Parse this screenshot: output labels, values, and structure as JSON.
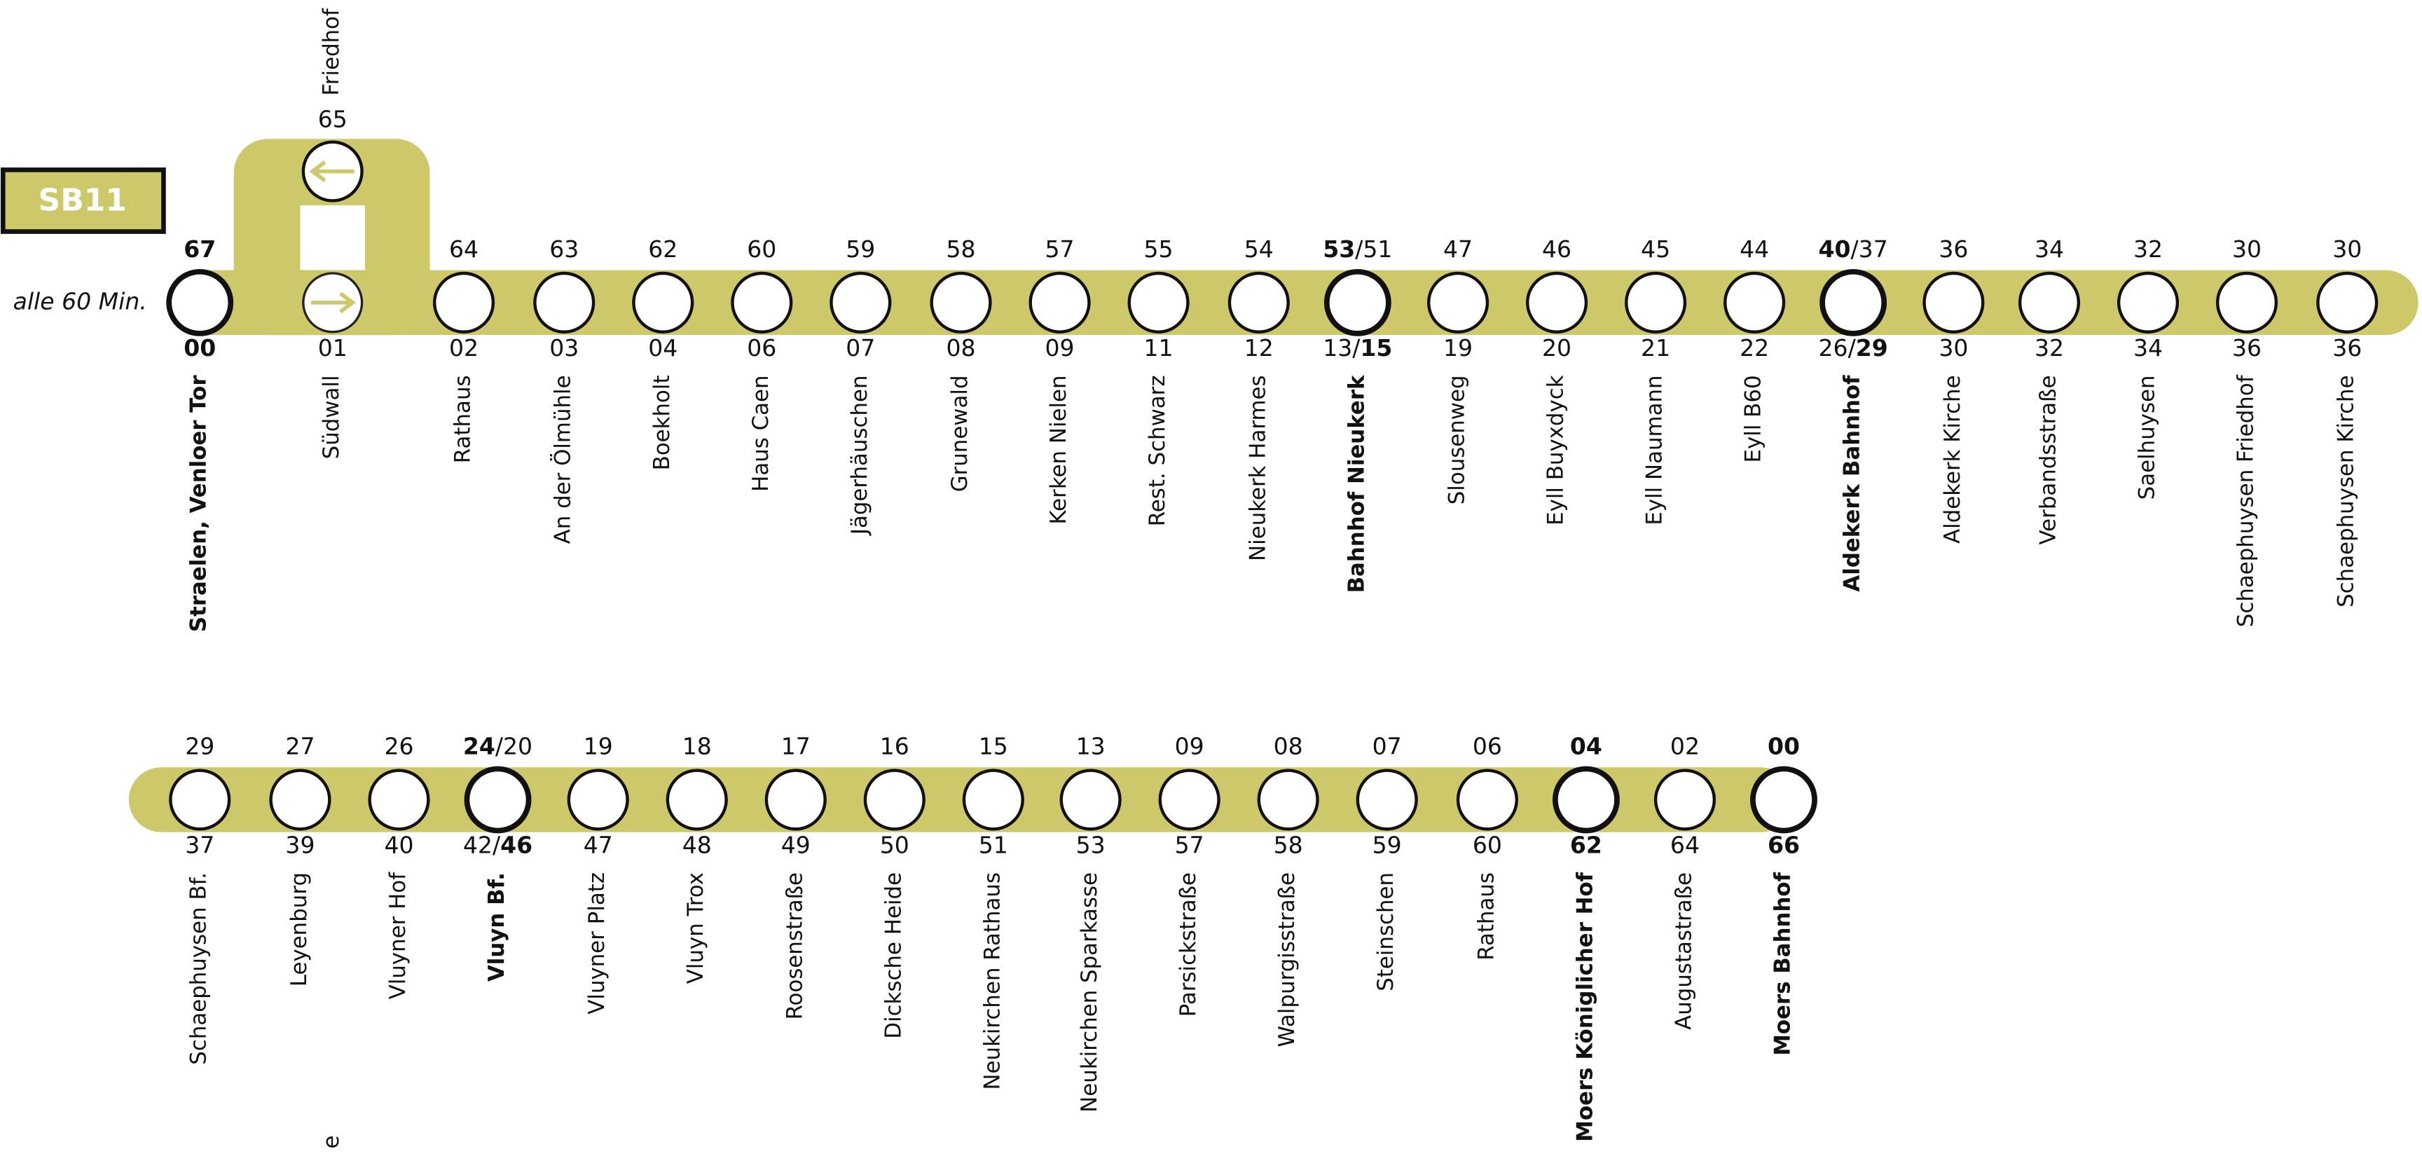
{
  "line": {
    "name": "SB11",
    "frequency": "alle 60 Min."
  },
  "branch": {
    "name": "Friedhof",
    "top": [
      "65"
    ]
  },
  "fragment": "e",
  "rows": [
    {
      "stops": [
        {
          "name": "Straelen, Venloer Tor",
          "major": true,
          "top": [
            {
              "text": "67",
              "bold": true
            }
          ],
          "bottom": [
            {
              "text": "00",
              "bold": true
            }
          ]
        },
        {
          "name": "Südwall",
          "branch": true,
          "bottom": [
            "01"
          ]
        },
        {
          "name": "Rathaus",
          "top": [
            "64"
          ],
          "bottom": [
            "02"
          ]
        },
        {
          "name": "An der Ölmühle",
          "top": [
            "63"
          ],
          "bottom": [
            "03"
          ]
        },
        {
          "name": "Boekholt",
          "top": [
            "62"
          ],
          "bottom": [
            "04"
          ]
        },
        {
          "name": "Haus Caen",
          "top": [
            "60"
          ],
          "bottom": [
            "06"
          ]
        },
        {
          "name": "Jägerhäuschen",
          "top": [
            "59"
          ],
          "bottom": [
            "07"
          ]
        },
        {
          "name": "Grunewald",
          "top": [
            "58"
          ],
          "bottom": [
            "08"
          ]
        },
        {
          "name": "Kerken Nielen",
          "top": [
            "57"
          ],
          "bottom": [
            "09"
          ]
        },
        {
          "name": "Rest. Schwarz",
          "top": [
            "55"
          ],
          "bottom": [
            "11"
          ]
        },
        {
          "name": "Nieukerk Harmes",
          "top": [
            "54"
          ],
          "bottom": [
            "12"
          ]
        },
        {
          "name": "Bahnhof Nieukerk",
          "major": true,
          "top": [
            {
              "text": "53",
              "bold": true
            },
            "/51"
          ],
          "bottom": [
            "13/",
            {
              "text": "15",
              "bold": true
            }
          ]
        },
        {
          "name": "Slousenweg",
          "top": [
            "47"
          ],
          "bottom": [
            "19"
          ]
        },
        {
          "name": "Eyll Buyxdyck",
          "top": [
            "46"
          ],
          "bottom": [
            "20"
          ]
        },
        {
          "name": "Eyll Naumann",
          "top": [
            "45"
          ],
          "bottom": [
            "21"
          ]
        },
        {
          "name": "Eyll B60",
          "top": [
            "44"
          ],
          "bottom": [
            "22"
          ]
        },
        {
          "name": "Aldekerk Bahnhof",
          "major": true,
          "top": [
            {
              "text": "40",
              "bold": true
            },
            "/37"
          ],
          "bottom": [
            "26/",
            {
              "text": "29",
              "bold": true
            }
          ]
        },
        {
          "name": "Aldekerk Kirche",
          "top": [
            "36"
          ],
          "bottom": [
            "30"
          ]
        },
        {
          "name": "Verbandsstraße",
          "top": [
            "34"
          ],
          "bottom": [
            "32"
          ]
        },
        {
          "name": "Saelhuysen",
          "top": [
            "32"
          ],
          "bottom": [
            "34"
          ]
        },
        {
          "name": "Schaephuysen Friedhof",
          "top": [
            "30"
          ],
          "bottom": [
            "36"
          ]
        },
        {
          "name": "Schaephuysen Kirche",
          "top": [
            "30"
          ],
          "bottom": [
            "36"
          ]
        }
      ]
    },
    {
      "stops": [
        {
          "name": "Schaephuysen Bf.",
          "top": [
            "29"
          ],
          "bottom": [
            "37"
          ]
        },
        {
          "name": "Leyenburg",
          "top": [
            "27"
          ],
          "bottom": [
            "39"
          ]
        },
        {
          "name": "Vluyner Hof",
          "top": [
            "26"
          ],
          "bottom": [
            "40"
          ]
        },
        {
          "name": "Vluyn Bf.",
          "major": true,
          "top": [
            {
              "text": "24",
              "bold": true
            },
            "/20"
          ],
          "bottom": [
            "42/",
            {
              "text": "46",
              "bold": true
            }
          ]
        },
        {
          "name": "Vluyner Platz",
          "top": [
            "19"
          ],
          "bottom": [
            "47"
          ]
        },
        {
          "name": "Vluyn Trox",
          "top": [
            "18"
          ],
          "bottom": [
            "48"
          ]
        },
        {
          "name": "Roosenstraße",
          "top": [
            "17"
          ],
          "bottom": [
            "49"
          ]
        },
        {
          "name": "Dicksche Heide",
          "top": [
            "16"
          ],
          "bottom": [
            "50"
          ]
        },
        {
          "name": "Neukirchen Rathaus",
          "top": [
            "15"
          ],
          "bottom": [
            "51"
          ]
        },
        {
          "name": "Neukirchen Sparkasse",
          "top": [
            "13"
          ],
          "bottom": [
            "53"
          ]
        },
        {
          "name": "Parsickstraße",
          "top": [
            "09"
          ],
          "bottom": [
            "57"
          ]
        },
        {
          "name": "Walpurgisstraße",
          "top": [
            "08"
          ],
          "bottom": [
            "58"
          ]
        },
        {
          "name": "Steinschen",
          "top": [
            "07"
          ],
          "bottom": [
            "59"
          ]
        },
        {
          "name": "Rathaus",
          "top": [
            "06"
          ],
          "bottom": [
            "60"
          ]
        },
        {
          "name": "Moers Königlicher Hof",
          "major": true,
          "top": [
            {
              "text": "04",
              "bold": true
            }
          ],
          "bottom": [
            {
              "text": "62",
              "bold": true
            }
          ]
        },
        {
          "name": "Augustastraße",
          "top": [
            "02"
          ],
          "bottom": [
            "64"
          ]
        },
        {
          "name": "Moers Bahnhof",
          "major": true,
          "top": [
            {
              "text": "00",
              "bold": true
            }
          ],
          "bottom": [
            {
              "text": "66",
              "bold": true
            }
          ]
        }
      ]
    }
  ]
}
